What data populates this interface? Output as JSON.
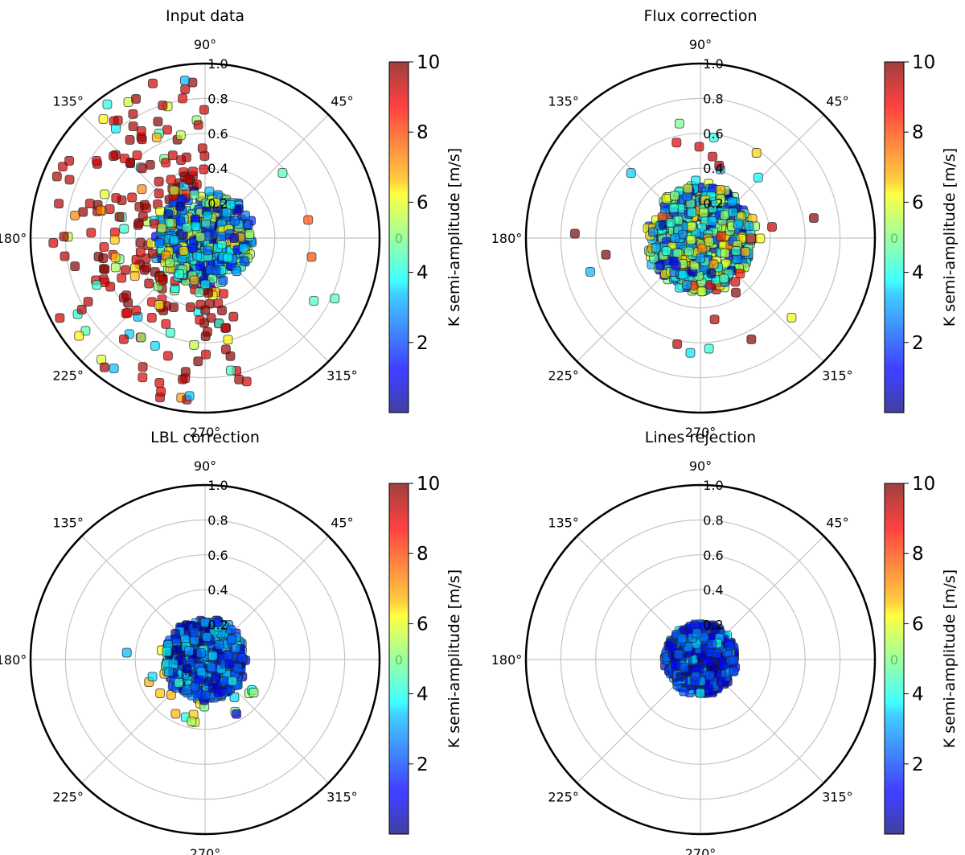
{
  "colorbar": {
    "label": "K semi-amplitude [m/s]",
    "min": 0,
    "max": 10,
    "ticks": [
      2,
      4,
      6,
      8,
      10
    ],
    "colormap": "jet",
    "alpha": 0.7
  },
  "chart_data": [
    {
      "type": "scatter",
      "projection": "polar",
      "title": "Input data",
      "angle_ticks": [
        "0",
        "45°",
        "90°",
        "135°",
        "180°",
        "225°",
        "270°",
        "315°"
      ],
      "radial_ticks": [
        "0.2",
        "0.4",
        "0.6",
        "0.8",
        "1.0"
      ],
      "rlim": [
        0,
        1.0
      ],
      "grid": true,
      "point_stats": {
        "core_radius": 0.27,
        "core_count": 500,
        "core_k_mean": 3.5,
        "core_k_spread": 3.0,
        "outlier_count": 230,
        "outlier_radius_range": [
          0.3,
          0.95
        ],
        "outlier_angle_range_deg": [
          90,
          290
        ],
        "outlier_k_high_fraction": 0.7,
        "extra_points": [
          {
            "angle_deg": 330,
            "r": 0.72,
            "k": 4.5
          },
          {
            "angle_deg": 335,
            "r": 0.82,
            "k": 4.5
          },
          {
            "angle_deg": 10,
            "r": 0.6,
            "k": 8.0
          },
          {
            "angle_deg": 350,
            "r": 0.62,
            "k": 8.0
          },
          {
            "angle_deg": 40,
            "r": 0.58,
            "k": 4.5
          }
        ]
      }
    },
    {
      "type": "scatter",
      "projection": "polar",
      "title": "Flux correction",
      "angle_ticks": [
        "0",
        "45°",
        "90°",
        "135°",
        "180°",
        "225°",
        "270°",
        "315°"
      ],
      "radial_ticks": [
        "0.2",
        "0.4",
        "0.6",
        "0.8",
        "1.0"
      ],
      "rlim": [
        0,
        1.0
      ],
      "grid": true,
      "point_stats": {
        "core_radius": 0.3,
        "core_count": 650,
        "core_k_mean": 4.0,
        "core_k_spread": 3.2,
        "outlier_count": 25,
        "outlier_radius_range": [
          0.3,
          0.7
        ],
        "outlier_angle_range_deg": [
          0,
          360
        ],
        "outlier_k_high_fraction": 0.3,
        "extra_points": [
          {
            "angle_deg": 178,
            "r": 0.72,
            "k": 10
          },
          {
            "angle_deg": 10,
            "r": 0.66,
            "k": 10
          },
          {
            "angle_deg": 265,
            "r": 0.66,
            "k": 3.5
          },
          {
            "angle_deg": 197,
            "r": 0.66,
            "k": 3.0
          },
          {
            "angle_deg": 190,
            "r": 0.55,
            "k": 10
          }
        ]
      }
    },
    {
      "type": "scatter",
      "projection": "polar",
      "title": "LBL correction",
      "angle_ticks": [
        "0",
        "45°",
        "90°",
        "135°",
        "180°",
        "225°",
        "270°",
        "315°"
      ],
      "radial_ticks": [
        "0.2",
        "0.4",
        "0.6",
        "0.8",
        "1.0"
      ],
      "rlim": [
        0,
        1.0
      ],
      "grid": true,
      "point_stats": {
        "core_radius": 0.23,
        "core_count": 650,
        "core_k_mean": 2.2,
        "core_k_spread": 1.8,
        "outlier_count": 18,
        "outlier_radius_range": [
          0.24,
          0.42
        ],
        "outlier_angle_range_deg": [
          150,
          330
        ],
        "outlier_k_high_fraction": 0.0,
        "extra_points": [
          {
            "angle_deg": 300,
            "r": 0.36,
            "k": 1.0
          },
          {
            "angle_deg": 175,
            "r": 0.45,
            "k": 3.0
          }
        ]
      }
    },
    {
      "type": "scatter",
      "projection": "polar",
      "title": "Lines rejection",
      "angle_ticks": [
        "0",
        "45°",
        "90°",
        "135°",
        "180°",
        "225°",
        "270°",
        "315°"
      ],
      "radial_ticks": [
        "0.2",
        "0.4",
        "0.6",
        "0.8",
        "1.0"
      ],
      "rlim": [
        0,
        1.0
      ],
      "grid": true,
      "point_stats": {
        "core_radius": 0.2,
        "core_count": 650,
        "core_k_mean": 1.8,
        "core_k_spread": 1.6,
        "outlier_count": 0,
        "outlier_radius_range": [
          0.2,
          0.25
        ],
        "outlier_angle_range_deg": [
          0,
          360
        ],
        "outlier_k_high_fraction": 0.0,
        "extra_points": []
      }
    }
  ]
}
